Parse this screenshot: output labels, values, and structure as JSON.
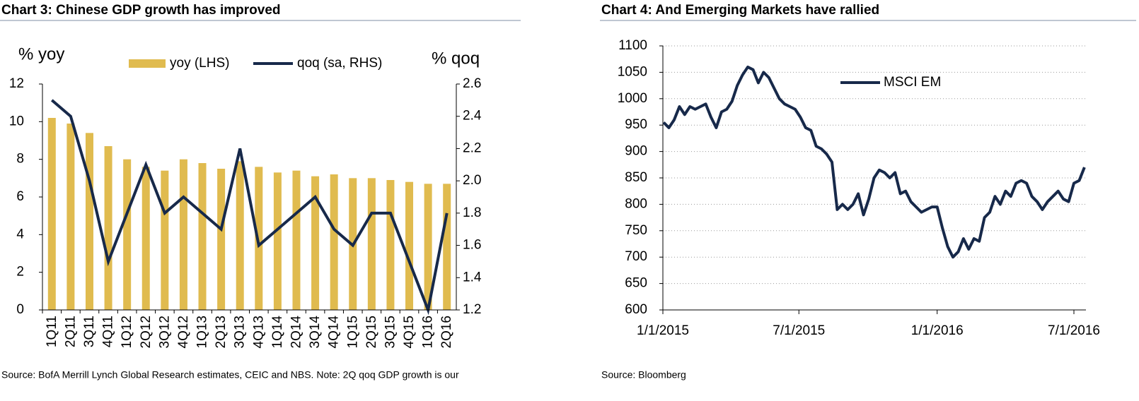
{
  "chart_data": [
    {
      "type": "combo",
      "title": "Chart 3: Chinese GDP growth has improved",
      "y_label": "% yoy",
      "y2_label": "% qoq",
      "source": "Source: BofA Merrill Lynch Global Research estimates, CEIC and NBS. Note: 2Q qoq GDP growth is our",
      "categories": [
        "1Q11",
        "2Q11",
        "3Q11",
        "4Q11",
        "1Q12",
        "2Q12",
        "3Q12",
        "4Q12",
        "1Q13",
        "2Q13",
        "3Q13",
        "4Q13",
        "1Q14",
        "2Q14",
        "3Q14",
        "4Q14",
        "1Q15",
        "2Q15",
        "3Q15",
        "4Q15",
        "1Q16",
        "2Q16"
      ],
      "series": [
        {
          "name": "yoy (LHS)",
          "type": "bar",
          "color": "#e0bb4f",
          "values": [
            10.2,
            9.9,
            9.4,
            8.7,
            8.0,
            7.6,
            7.4,
            8.0,
            7.8,
            7.5,
            7.9,
            7.6,
            7.3,
            7.4,
            7.1,
            7.2,
            7.0,
            7.0,
            6.9,
            6.8,
            6.7,
            6.7
          ]
        },
        {
          "name": "qoq (sa, RHS)",
          "type": "line",
          "axis": "y2",
          "color": "#17294a",
          "values": [
            2.5,
            2.4,
            2.0,
            1.5,
            1.8,
            2.1,
            1.8,
            1.9,
            1.8,
            1.7,
            2.2,
            1.6,
            1.7,
            1.8,
            1.9,
            1.7,
            1.6,
            1.8,
            1.8,
            1.5,
            1.2,
            1.8
          ]
        }
      ],
      "ylim": [
        0,
        12
      ],
      "yticks": [
        0,
        2,
        4,
        6,
        8,
        10,
        12
      ],
      "y2lim": [
        1.2,
        2.6
      ],
      "y2ticks": [
        1.2,
        1.4,
        1.6,
        1.8,
        {
          "value": 2,
          "label": "2.0"
        },
        2.2,
        2.4,
        2.6
      ],
      "grid": false
    },
    {
      "type": "line",
      "title": "Chart 4: And Emerging Markets have rallied",
      "source": "Source: Bloomberg",
      "x": [
        "1/2/2015",
        "1/9/2015",
        "1/16/2015",
        "1/23/2015",
        "1/30/2015",
        "2/6/2015",
        "2/13/2015",
        "2/20/2015",
        "2/27/2015",
        "3/6/2015",
        "3/13/2015",
        "3/20/2015",
        "3/27/2015",
        "4/3/2015",
        "4/10/2015",
        "4/17/2015",
        "4/24/2015",
        "5/1/2015",
        "5/8/2015",
        "5/15/2015",
        "5/22/2015",
        "5/29/2015",
        "6/5/2015",
        "6/12/2015",
        "6/19/2015",
        "6/26/2015",
        "7/3/2015",
        "7/10/2015",
        "7/17/2015",
        "7/24/2015",
        "7/31/2015",
        "8/7/2015",
        "8/14/2015",
        "8/21/2015",
        "8/28/2015",
        "9/4/2015",
        "9/11/2015",
        "9/18/2015",
        "9/25/2015",
        "10/2/2015",
        "10/9/2015",
        "10/16/2015",
        "10/23/2015",
        "10/30/2015",
        "11/6/2015",
        "11/13/2015",
        "11/20/2015",
        "11/27/2015",
        "12/4/2015",
        "12/11/2015",
        "12/18/2015",
        "12/25/2015",
        "1/1/2016",
        "1/8/2016",
        "1/15/2016",
        "1/22/2016",
        "1/29/2016",
        "2/5/2016",
        "2/12/2016",
        "2/19/2016",
        "2/26/2016",
        "3/4/2016",
        "3/11/2016",
        "3/18/2016",
        "3/25/2016",
        "4/1/2016",
        "4/8/2016",
        "4/15/2016",
        "4/22/2016",
        "4/29/2016",
        "5/6/2016",
        "5/13/2016",
        "5/20/2016",
        "5/27/2016",
        "6/3/2016",
        "6/10/2016",
        "6/17/2016",
        "6/24/2016",
        "7/1/2016",
        "7/8/2016",
        "7/15/2016"
      ],
      "series": [
        {
          "name": "MSCI EM",
          "color": "#17294a",
          "values": [
            955,
            945,
            960,
            985,
            970,
            985,
            980,
            985,
            990,
            965,
            945,
            975,
            980,
            995,
            1025,
            1045,
            1060,
            1055,
            1030,
            1050,
            1040,
            1020,
            1000,
            990,
            985,
            980,
            965,
            945,
            940,
            910,
            905,
            895,
            880,
            790,
            800,
            790,
            800,
            820,
            780,
            810,
            850,
            865,
            860,
            850,
            860,
            820,
            825,
            805,
            795,
            785,
            790,
            795,
            795,
            755,
            720,
            700,
            710,
            735,
            715,
            735,
            730,
            775,
            785,
            815,
            800,
            825,
            815,
            840,
            845,
            840,
            815,
            805,
            790,
            805,
            815,
            825,
            810,
            805,
            840,
            845,
            870
          ]
        }
      ],
      "xlim": [
        "1/1/2015",
        "7/17/2016"
      ],
      "xticks": [
        "1/1/2015",
        "7/1/2015",
        "1/1/2016",
        "7/1/2016"
      ],
      "ylim": [
        600,
        1100
      ],
      "yticks": [
        600,
        650,
        700,
        750,
        800,
        850,
        900,
        950,
        1000,
        1050,
        1100
      ],
      "grid": true
    }
  ]
}
